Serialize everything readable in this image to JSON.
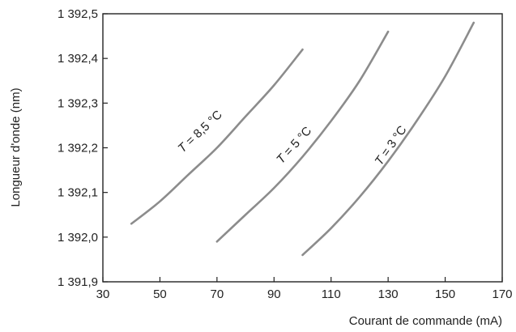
{
  "chart_data": {
    "type": "line",
    "title": "",
    "xlabel": "Courant de commande (mA)",
    "ylabel": "Longueur d'onde (nm)",
    "xlim": [
      30,
      170
    ],
    "ylim": [
      1391.9,
      1392.5
    ],
    "xticks": [
      30,
      50,
      70,
      90,
      110,
      130,
      150,
      170
    ],
    "xtick_labels": [
      "30",
      "50",
      "70",
      "90",
      "110",
      "130",
      "150",
      "170"
    ],
    "yticks": [
      1391.9,
      1392.0,
      1392.1,
      1392.2,
      1392.3,
      1392.4,
      1392.5
    ],
    "ytick_labels": [
      "1 391,9",
      "1 392,0",
      "1 392,1",
      "1 392,2",
      "1 392,3",
      "1 392,4",
      "1 392,5"
    ],
    "grid": false,
    "line_color": "#8c8c8c",
    "series": [
      {
        "name": "T = 8,5 °C",
        "label_parts": [
          "T",
          " = 8,5 °C"
        ],
        "label_at": [
          65,
          1392.23
        ],
        "x": [
          40,
          50,
          60,
          70,
          80,
          90,
          100
        ],
        "y": [
          1392.03,
          1392.08,
          1392.14,
          1392.2,
          1392.27,
          1392.34,
          1392.42
        ]
      },
      {
        "name": "T = 5 °C",
        "label_parts": [
          "T",
          " = 5 °C"
        ],
        "label_at": [
          98,
          1392.2
        ],
        "x": [
          70,
          80,
          90,
          100,
          110,
          120,
          130
        ],
        "y": [
          1391.99,
          1392.05,
          1392.11,
          1392.18,
          1392.26,
          1392.35,
          1392.46
        ]
      },
      {
        "name": "T = 3 °C",
        "label_parts": [
          "T",
          " = 3 °C"
        ],
        "label_at": [
          132,
          1392.2
        ],
        "x": [
          100,
          110,
          120,
          130,
          140,
          150,
          160
        ],
        "y": [
          1391.96,
          1392.02,
          1392.09,
          1392.17,
          1392.26,
          1392.36,
          1392.48
        ]
      }
    ]
  }
}
